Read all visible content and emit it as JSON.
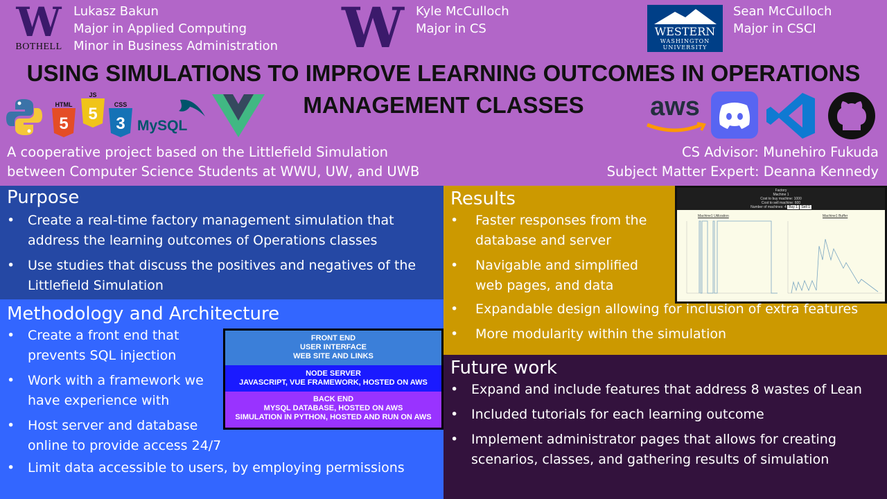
{
  "header": {
    "authors": [
      {
        "name": "Lukasz Bakun",
        "line2": "Major in Applied Computing",
        "line3": "Minor in Business Administration"
      },
      {
        "name": "Kyle McCulloch",
        "line2": "Major in CS"
      },
      {
        "name": "Sean McCulloch",
        "line2": "Major in CSCI"
      }
    ],
    "logos": {
      "uw_bothell_letter": "W",
      "uw_bothell_text": "BOTHELL",
      "uw_letter": "W",
      "wwu_name": "WESTERN",
      "wwu_sub1": "WASHINGTON",
      "wwu_sub2": "UNIVERSITY"
    },
    "title_line1": "USING SIMULATIONS TO IMPROVE LEARNING OUTCOMES IN OPERATIONS",
    "title_line2": "MANAGEMENT CLASSES",
    "tech_logos": {
      "html": "HTML",
      "js": "JS",
      "css": "CSS",
      "mysql": "MySQL",
      "aws": "aws"
    },
    "subtitle_left": [
      "A cooperative project based on the Littlefield Simulation",
      "between Computer Science Students at WWU, UW, and UWB"
    ],
    "subtitle_right": [
      "CS Advisor: Munehiro Fukuda",
      "Subject Matter Expert: Deanna Kennedy"
    ]
  },
  "purpose": {
    "heading": "Purpose",
    "items": [
      "Create a real-time factory management simulation that address the learning outcomes of Operations classes",
      "Use studies that discuss the positives and negatives of the Littlefield Simulation"
    ]
  },
  "method": {
    "heading": "Methodology and Architecture",
    "items": [
      "Create a front end that prevents SQL injection",
      "Work with a framework we have experience with",
      "Host server and database online to provide access 24/7",
      "Limit data accessible to users, by employing permissions"
    ],
    "arch": {
      "front": [
        "FRONT END",
        "USER INTERFACE",
        "WEB SITE AND LINKS"
      ],
      "node": [
        "NODE SERVER",
        "JAVASCRIPT, VUE FRAMEWORK, HOSTED ON AWS"
      ],
      "back": [
        "BACK END",
        "MYSQL DATABASE, HOSTED ON AWS",
        "SIMULATION IN PYTHON, HOSTED AND RUN ON AWS"
      ]
    }
  },
  "results": {
    "heading": "Results",
    "items": [
      "Faster responses from the database and server",
      "Navigable and simplified web pages, and data",
      "Expandable design allowing for inclusion of extra features",
      "More modularity within the simulation"
    ],
    "screenshot": {
      "title": "Factory",
      "l1": "Machine 1",
      "l2": "Cost to buy machine: 1000",
      "l3": "Cost to sell machine: 600",
      "l4": "Number of machines: 4",
      "buy": "Buy 1",
      "sell": "Sell 1",
      "chart1": "Machine1 Utilization",
      "chart2": "Machine1 Buffer"
    }
  },
  "future": {
    "heading": "Future work",
    "items": [
      "Expand and include features that address 8 wastes of Lean",
      "Included tutorials for each learning outcome",
      "Implement administrator pages that allows for creating scenarios, classes, and gathering results of simulation"
    ]
  },
  "colors": {
    "background": "#b266c8",
    "purpose": "#2548a4",
    "method": "#3366ff",
    "results": "#cc9900",
    "future": "#33123d",
    "arch_front": "#3b7fd9",
    "arch_node": "#1a1aff",
    "arch_back": "#9933ff"
  }
}
